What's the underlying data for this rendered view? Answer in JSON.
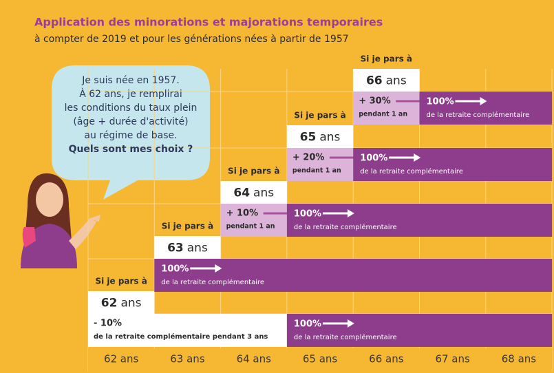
{
  "header": {
    "title": "Application des minorations et majorations temporaires",
    "subtitle": "à compter de 2019 et pour les générations nées à partir de 1957"
  },
  "bubble": {
    "lines": [
      "Je suis née en 1957.",
      "À 62 ans, je remplirai",
      "les conditions du taux plein",
      "(âge + durée d'activité)",
      "au régime de base."
    ],
    "question": "Quels sont mes choix ?"
  },
  "steps": [
    {
      "label": "Si je pars à",
      "age": "62",
      "unit": "ans",
      "adjustment": {
        "amount": "- 10%",
        "detail": "de la retraite complémentaire pendant 3 ans"
      },
      "full": {
        "amount": "100%",
        "detail": "de la retraite complémentaire"
      }
    },
    {
      "label": "Si je pars à",
      "age": "63",
      "unit": "ans",
      "full": {
        "amount": "100%",
        "detail": "de la retraite complémentaire"
      }
    },
    {
      "label": "Si je pars à",
      "age": "64",
      "unit": "ans",
      "adjustment": {
        "amount": "+ 10%",
        "detail": "pendant 1 an"
      },
      "full": {
        "amount": "100%",
        "detail": "de la retraite complémentaire"
      }
    },
    {
      "label": "Si je pars à",
      "age": "65",
      "unit": "ans",
      "adjustment": {
        "amount": "+ 20%",
        "detail": "pendant 1 an"
      },
      "full": {
        "amount": "100%",
        "detail": "de la retraite complémentaire"
      }
    },
    {
      "label": "Si je pars à",
      "age": "66",
      "unit": "ans",
      "adjustment": {
        "amount": "+ 30%",
        "detail": "pendant 1 an"
      },
      "full": {
        "amount": "100%",
        "detail": "de la retraite complémentaire"
      }
    }
  ],
  "axis": {
    "labels": [
      "62 ans",
      "63 ans",
      "64 ans",
      "65 ans",
      "66 ans",
      "67 ans",
      "68 ans"
    ]
  }
}
